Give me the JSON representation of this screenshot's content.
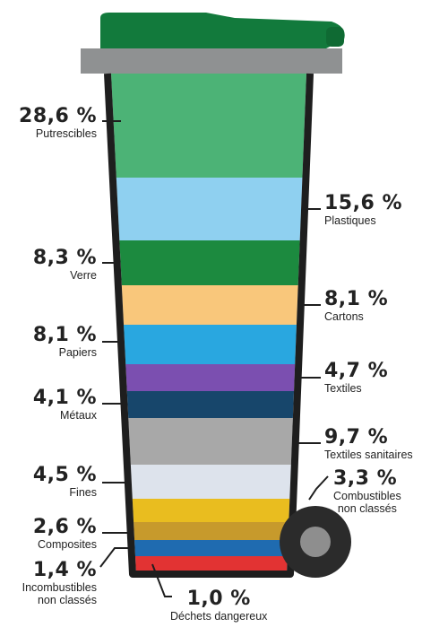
{
  "categories": [
    {
      "percent": "28,6 %",
      "name": "Putrescibles",
      "value": 28.6,
      "color": "#4cb376"
    },
    {
      "percent": "15,6 %",
      "name": "Plastiques",
      "value": 15.6,
      "color": "#8fd0f0"
    },
    {
      "percent": "8,3 %",
      "name": "Verre",
      "value": 8.3,
      "color": "#1c8a3f"
    },
    {
      "percent": "8,1 %",
      "name": "Cartons",
      "value": 8.1,
      "color": "#f9c77b"
    },
    {
      "percent": "8,1 %",
      "name": "Papiers",
      "value": 8.1,
      "color": "#29a7e0"
    },
    {
      "percent": "4,7 %",
      "name": "Textiles",
      "value": 4.7,
      "color": "#7b4fb0"
    },
    {
      "percent": "4,1 %",
      "name": "Métaux",
      "value": 4.1,
      "color": "#17466b"
    },
    {
      "percent": "9,7 %",
      "name": "Textiles sanitaires",
      "value": 9.7,
      "color": "#a8a8a8"
    },
    {
      "percent": "4,5 %",
      "name": "Fines",
      "value": 4.5,
      "color": "#dde3ec"
    },
    {
      "percent": "3,3 %",
      "name": "Combustibles\nnon classés",
      "value": 3.3,
      "color": "#e9bd1f"
    },
    {
      "percent": "2,6 %",
      "name": "Composites",
      "value": 2.6,
      "color": "#c79a2c"
    },
    {
      "percent": "1,4 %",
      "name": "Incombustibles\nnon classés",
      "value": 1.4,
      "color": "#1f6bb0"
    },
    {
      "percent": "1,0 %",
      "name": "Déchets dangereux",
      "value": 1.0,
      "color": "#e23333"
    }
  ],
  "colors": {
    "lid": "#127a3c",
    "rim": "#8f9192",
    "outline": "#1e1e1e",
    "wheel": "#2b2b2b",
    "hub": "#8e8e8e"
  }
}
